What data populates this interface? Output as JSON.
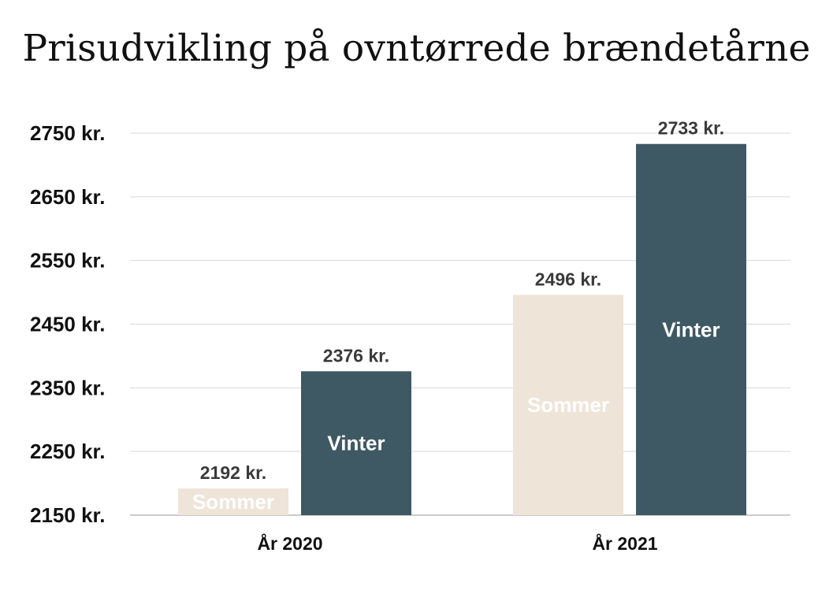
{
  "chart_data": {
    "type": "bar",
    "title": "Prisudvikling på ovntørrede brændetårne",
    "categories": [
      "År 2020",
      "År 2021"
    ],
    "series": [
      {
        "name": "Sommer",
        "values": [
          2192,
          2496
        ],
        "labels": [
          "2192 kr.",
          "2496 kr."
        ],
        "color": "#efe4d8"
      },
      {
        "name": "Vinter",
        "values": [
          2376,
          2733
        ],
        "labels": [
          "2376 kr.",
          "2733 kr."
        ],
        "color": "#3f5964"
      }
    ],
    "yticks": [
      2150,
      2250,
      2350,
      2450,
      2550,
      2650,
      2750
    ],
    "ytick_labels": [
      "2150 kr.",
      "2250 kr.",
      "2350 kr.",
      "2450 kr.",
      "2550 kr.",
      "2650 kr.",
      "2750 kr."
    ],
    "ylim": [
      2150,
      2750
    ],
    "grid": true,
    "legend": "none"
  }
}
